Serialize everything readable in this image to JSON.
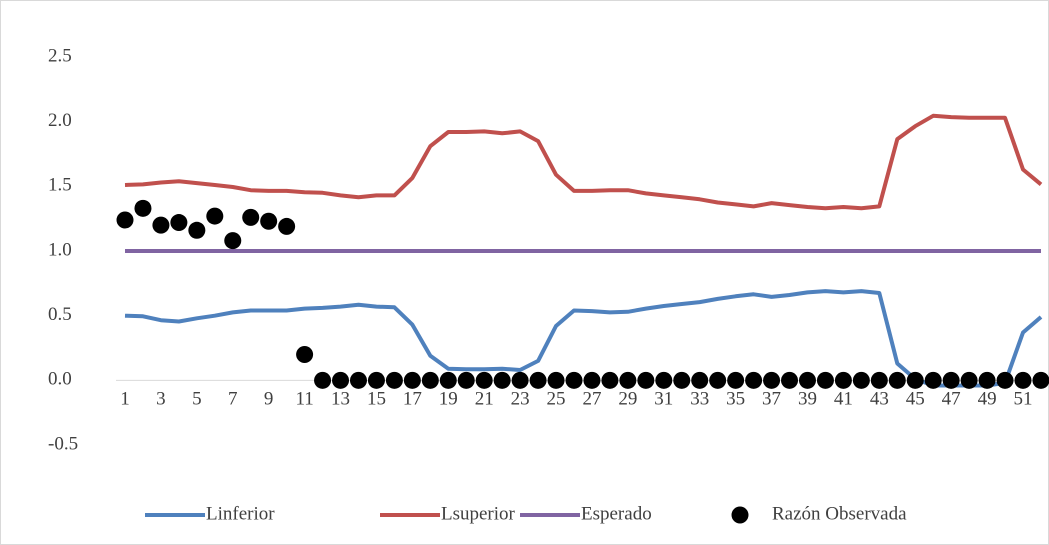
{
  "chart_data": {
    "type": "line",
    "categories": [
      1,
      null,
      3,
      null,
      5,
      null,
      7,
      null,
      9,
      null,
      11,
      null,
      13,
      null,
      15,
      null,
      17,
      null,
      19,
      null,
      21,
      null,
      23,
      null,
      25,
      null,
      27,
      null,
      29,
      null,
      31,
      null,
      33,
      null,
      35,
      null,
      37,
      null,
      39,
      null,
      41,
      null,
      43,
      null,
      45,
      null,
      47,
      null,
      49,
      null,
      51,
      null
    ],
    "ylim": [
      -0.5,
      2.5
    ],
    "yticks": [
      -0.5,
      {
        "value": 0,
        "label": "0.0"
      },
      0.5,
      {
        "value": 1,
        "label": "1.0"
      },
      1.5,
      {
        "value": 2,
        "label": "2.0"
      },
      2.5
    ],
    "legend": "bottom",
    "series": [
      {
        "name": "Linferior",
        "type": "line",
        "color": "#4f81bd",
        "values": [
          0.5,
          0.495,
          0.465,
          0.455,
          0.48,
          0.5,
          0.525,
          0.54,
          0.54,
          0.54,
          0.555,
          0.56,
          0.57,
          0.585,
          0.57,
          0.565,
          0.43,
          0.19,
          0.09,
          0.085,
          0.085,
          0.09,
          0.08,
          0.15,
          0.42,
          0.54,
          0.535,
          0.525,
          0.53,
          0.555,
          0.575,
          0.59,
          0.605,
          0.63,
          0.65,
          0.665,
          0.645,
          0.66,
          0.68,
          0.69,
          0.68,
          0.69,
          0.675,
          0.13,
          0.01,
          -0.04,
          -0.04,
          -0.04,
          -0.04,
          -0.02,
          0.37,
          0.49
        ]
      },
      {
        "name": "Lsuperior",
        "type": "line",
        "color": "#c0504d",
        "values": [
          1.51,
          1.515,
          1.53,
          1.54,
          1.525,
          1.51,
          1.495,
          1.47,
          1.465,
          1.465,
          1.455,
          1.45,
          1.43,
          1.415,
          1.43,
          1.43,
          1.565,
          1.81,
          1.92,
          1.92,
          1.925,
          1.91,
          1.925,
          1.85,
          1.59,
          1.465,
          1.465,
          1.47,
          1.47,
          1.445,
          1.43,
          1.415,
          1.4,
          1.375,
          1.36,
          1.345,
          1.37,
          1.355,
          1.34,
          1.33,
          1.34,
          1.33,
          1.345,
          1.865,
          1.965,
          2.045,
          2.035,
          2.03,
          2.03,
          2.03,
          1.63,
          1.515
        ]
      },
      {
        "name": "Esperado",
        "type": "line",
        "color": "#8064a2",
        "values": [
          1,
          1,
          1,
          1,
          1,
          1,
          1,
          1,
          1,
          1,
          1,
          1,
          1,
          1,
          1,
          1,
          1,
          1,
          1,
          1,
          1,
          1,
          1,
          1,
          1,
          1,
          1,
          1,
          1,
          1,
          1,
          1,
          1,
          1,
          1,
          1,
          1,
          1,
          1,
          1,
          1,
          1,
          1,
          1,
          1,
          1,
          1,
          1,
          1,
          1,
          1,
          1
        ]
      },
      {
        "name": "Razón Observada",
        "type": "scatter",
        "color": "#000000",
        "values": [
          1.24,
          1.33,
          1.2,
          1.22,
          1.16,
          1.27,
          1.08,
          1.26,
          1.23,
          1.19,
          0.2,
          0,
          0,
          0,
          0,
          0,
          0,
          0,
          0,
          0,
          0,
          0,
          0,
          0,
          0,
          0,
          0,
          0,
          0,
          0,
          0,
          0,
          0,
          0,
          0,
          0,
          0,
          0,
          0,
          0,
          0,
          0,
          0,
          0,
          0,
          0,
          0,
          0,
          0,
          0,
          0,
          0
        ]
      }
    ]
  }
}
